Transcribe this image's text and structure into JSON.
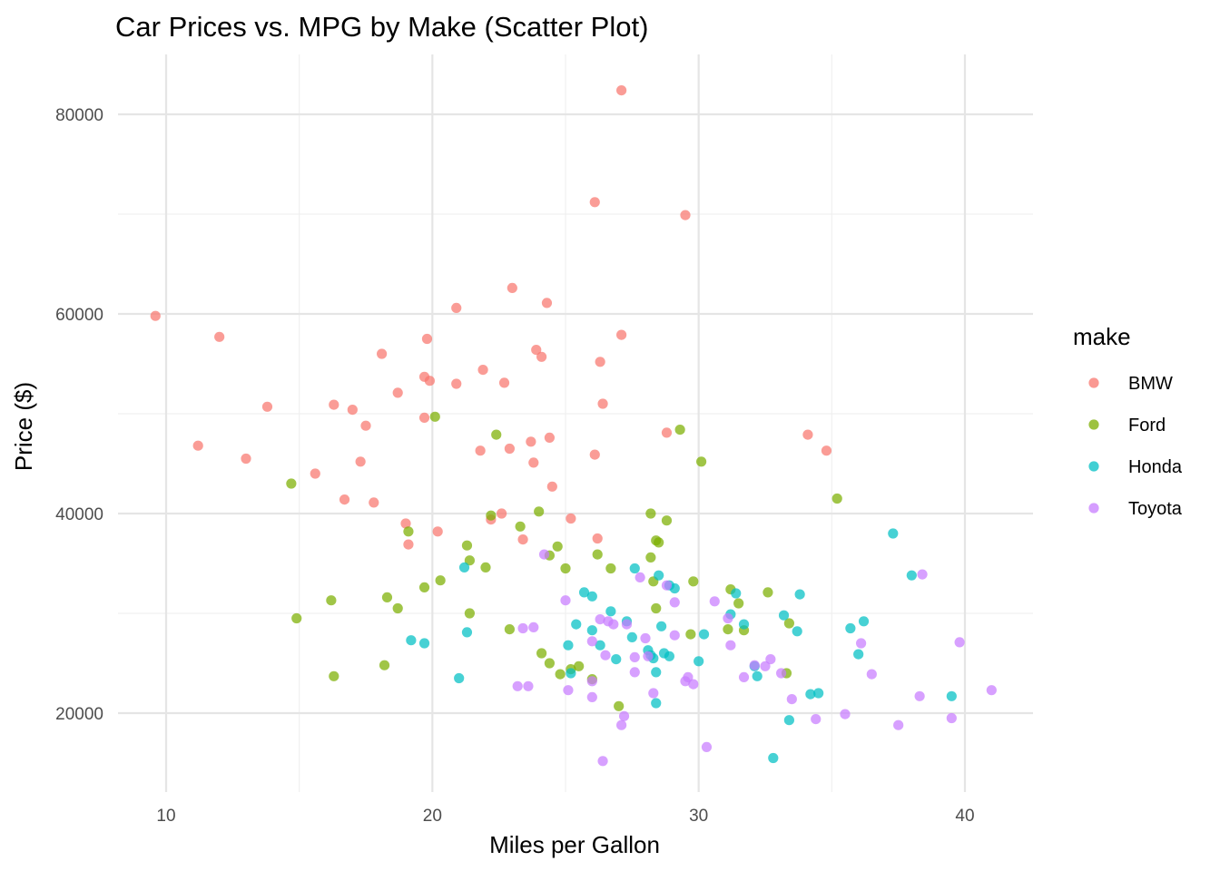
{
  "chart_data": {
    "type": "scatter",
    "title": "Car Prices vs. MPG by Make (Scatter Plot)",
    "xlabel": "Miles per Gallon",
    "ylabel": "Price ($)",
    "xlim": [
      8.5,
      42.5
    ],
    "ylim": [
      12500,
      85000
    ],
    "x_ticks": [
      10,
      20,
      30,
      40
    ],
    "x_tick_labels": [
      "10",
      "20",
      "30",
      "40"
    ],
    "y_ticks": [
      20000,
      40000,
      60000,
      80000
    ],
    "y_tick_labels": [
      "20000",
      "40000",
      "60000",
      "80000"
    ],
    "grid": true,
    "legend": {
      "title": "make",
      "position": "right"
    },
    "series": [
      {
        "name": "BMW",
        "color": "#F8766D",
        "points": [
          [
            9.6,
            59800
          ],
          [
            11.2,
            46800
          ],
          [
            12.0,
            57700
          ],
          [
            13.0,
            45500
          ],
          [
            13.8,
            50700
          ],
          [
            15.6,
            44000
          ],
          [
            16.3,
            50900
          ],
          [
            16.7,
            41400
          ],
          [
            17.0,
            50400
          ],
          [
            17.3,
            45200
          ],
          [
            17.5,
            48800
          ],
          [
            17.8,
            41100
          ],
          [
            18.1,
            56000
          ],
          [
            18.7,
            52100
          ],
          [
            19.0,
            39000
          ],
          [
            19.1,
            36900
          ],
          [
            19.7,
            53700
          ],
          [
            19.7,
            49600
          ],
          [
            19.8,
            57500
          ],
          [
            19.9,
            53300
          ],
          [
            20.2,
            38200
          ],
          [
            20.9,
            53000
          ],
          [
            20.9,
            60600
          ],
          [
            21.8,
            46300
          ],
          [
            21.9,
            54400
          ],
          [
            22.2,
            39400
          ],
          [
            22.6,
            40000
          ],
          [
            22.7,
            53100
          ],
          [
            22.9,
            46500
          ],
          [
            23.0,
            62600
          ],
          [
            23.4,
            37400
          ],
          [
            23.7,
            47200
          ],
          [
            23.8,
            45100
          ],
          [
            23.9,
            56400
          ],
          [
            24.1,
            55700
          ],
          [
            24.3,
            61100
          ],
          [
            24.4,
            47600
          ],
          [
            24.5,
            42700
          ],
          [
            25.2,
            39500
          ],
          [
            26.1,
            71200
          ],
          [
            26.1,
            45900
          ],
          [
            26.2,
            37500
          ],
          [
            26.3,
            55200
          ],
          [
            26.4,
            51000
          ],
          [
            27.1,
            82400
          ],
          [
            27.1,
            57900
          ],
          [
            28.8,
            48100
          ],
          [
            29.5,
            69900
          ],
          [
            34.1,
            47900
          ],
          [
            34.8,
            46300
          ]
        ]
      },
      {
        "name": "Ford",
        "color": "#7CAE00",
        "points": [
          [
            14.7,
            43000
          ],
          [
            14.9,
            29500
          ],
          [
            16.2,
            31300
          ],
          [
            16.3,
            23700
          ],
          [
            18.2,
            24800
          ],
          [
            18.3,
            31600
          ],
          [
            18.7,
            30500
          ],
          [
            19.1,
            38200
          ],
          [
            19.7,
            32600
          ],
          [
            20.1,
            49700
          ],
          [
            20.3,
            33300
          ],
          [
            21.3,
            36800
          ],
          [
            21.4,
            35300
          ],
          [
            21.4,
            30000
          ],
          [
            22.0,
            34600
          ],
          [
            22.2,
            39800
          ],
          [
            22.4,
            47900
          ],
          [
            22.9,
            28400
          ],
          [
            23.3,
            38700
          ],
          [
            24.0,
            40200
          ],
          [
            24.1,
            26000
          ],
          [
            24.4,
            35800
          ],
          [
            24.4,
            25000
          ],
          [
            24.7,
            36700
          ],
          [
            24.8,
            23900
          ],
          [
            25.0,
            34500
          ],
          [
            25.2,
            24400
          ],
          [
            25.5,
            24700
          ],
          [
            26.0,
            23400
          ],
          [
            26.2,
            35900
          ],
          [
            26.7,
            34500
          ],
          [
            27.0,
            20700
          ],
          [
            28.2,
            40000
          ],
          [
            28.2,
            35600
          ],
          [
            28.3,
            33200
          ],
          [
            28.4,
            30500
          ],
          [
            28.4,
            37300
          ],
          [
            28.5,
            37100
          ],
          [
            28.8,
            39300
          ],
          [
            29.3,
            48400
          ],
          [
            29.7,
            27900
          ],
          [
            29.8,
            33200
          ],
          [
            30.1,
            45200
          ],
          [
            31.1,
            28400
          ],
          [
            31.2,
            32400
          ],
          [
            31.5,
            31000
          ],
          [
            31.7,
            28300
          ],
          [
            32.6,
            32100
          ],
          [
            33.3,
            24000
          ],
          [
            33.4,
            29000
          ],
          [
            35.2,
            41500
          ]
        ]
      },
      {
        "name": "Honda",
        "color": "#00BFC4",
        "points": [
          [
            19.2,
            27300
          ],
          [
            19.7,
            27000
          ],
          [
            21.0,
            23500
          ],
          [
            21.2,
            34600
          ],
          [
            21.3,
            28100
          ],
          [
            25.1,
            26800
          ],
          [
            25.2,
            24000
          ],
          [
            25.4,
            28900
          ],
          [
            25.7,
            32100
          ],
          [
            26.0,
            31700
          ],
          [
            26.0,
            28300
          ],
          [
            26.3,
            26800
          ],
          [
            26.7,
            30200
          ],
          [
            26.9,
            25400
          ],
          [
            27.3,
            29200
          ],
          [
            27.5,
            27600
          ],
          [
            27.6,
            34500
          ],
          [
            28.1,
            26300
          ],
          [
            28.2,
            25800
          ],
          [
            28.3,
            25500
          ],
          [
            28.4,
            24100
          ],
          [
            28.4,
            21000
          ],
          [
            28.5,
            33800
          ],
          [
            28.6,
            28700
          ],
          [
            28.7,
            26000
          ],
          [
            28.9,
            25700
          ],
          [
            28.9,
            32800
          ],
          [
            29.1,
            32500
          ],
          [
            30.0,
            25200
          ],
          [
            30.2,
            27900
          ],
          [
            31.2,
            29900
          ],
          [
            31.4,
            32000
          ],
          [
            31.7,
            28900
          ],
          [
            32.1,
            24700
          ],
          [
            32.2,
            23700
          ],
          [
            32.8,
            15500
          ],
          [
            33.2,
            29800
          ],
          [
            33.4,
            19300
          ],
          [
            33.7,
            28200
          ],
          [
            33.8,
            31900
          ],
          [
            34.2,
            21900
          ],
          [
            34.5,
            22000
          ],
          [
            35.7,
            28500
          ],
          [
            36.0,
            25900
          ],
          [
            36.2,
            29200
          ],
          [
            37.3,
            38000
          ],
          [
            38.0,
            33800
          ],
          [
            39.5,
            21700
          ]
        ]
      },
      {
        "name": "Toyota",
        "color": "#C77CFF",
        "points": [
          [
            23.2,
            22700
          ],
          [
            23.4,
            28500
          ],
          [
            23.6,
            22700
          ],
          [
            23.8,
            28600
          ],
          [
            24.2,
            35900
          ],
          [
            25.0,
            31300
          ],
          [
            25.1,
            22300
          ],
          [
            26.0,
            27200
          ],
          [
            26.0,
            21600
          ],
          [
            26.0,
            23200
          ],
          [
            26.3,
            29400
          ],
          [
            26.4,
            15200
          ],
          [
            26.5,
            25800
          ],
          [
            26.6,
            29200
          ],
          [
            26.8,
            28900
          ],
          [
            27.1,
            18800
          ],
          [
            27.2,
            19700
          ],
          [
            27.3,
            28900
          ],
          [
            27.6,
            25600
          ],
          [
            27.6,
            24100
          ],
          [
            27.8,
            33600
          ],
          [
            28.0,
            27500
          ],
          [
            28.1,
            25700
          ],
          [
            28.3,
            22000
          ],
          [
            28.8,
            32800
          ],
          [
            29.1,
            31100
          ],
          [
            29.1,
            27800
          ],
          [
            29.5,
            23200
          ],
          [
            29.6,
            23600
          ],
          [
            29.8,
            22900
          ],
          [
            30.3,
            16600
          ],
          [
            30.6,
            31200
          ],
          [
            31.1,
            29500
          ],
          [
            31.2,
            26800
          ],
          [
            31.7,
            23600
          ],
          [
            32.1,
            24800
          ],
          [
            32.5,
            24700
          ],
          [
            32.7,
            25400
          ],
          [
            33.1,
            24000
          ],
          [
            33.5,
            21400
          ],
          [
            34.4,
            19400
          ],
          [
            35.5,
            19900
          ],
          [
            36.1,
            27000
          ],
          [
            36.5,
            23900
          ],
          [
            37.5,
            18800
          ],
          [
            38.3,
            21700
          ],
          [
            38.4,
            33900
          ],
          [
            39.5,
            19500
          ],
          [
            39.8,
            27100
          ],
          [
            41.0,
            22300
          ]
        ]
      }
    ]
  }
}
